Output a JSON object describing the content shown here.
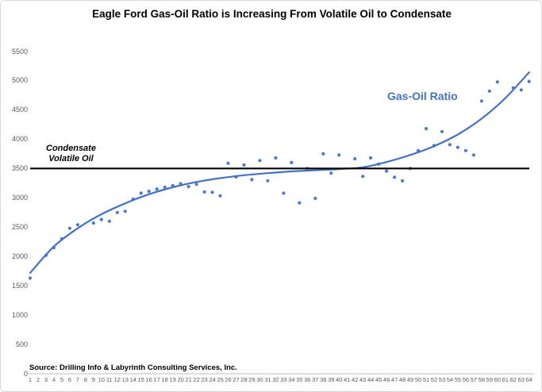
{
  "title": "Eagle Ford Gas-Oil Ratio is Increasing From Volatile Oil to Condensate",
  "source_note": "Source: Drilling Info & Labyrinth Consulting Services, Inc.",
  "annotations": {
    "condensate_label": "Condensate",
    "volatile_oil_label": "Volatile  Oil",
    "series_label": "Gas-Oil Ratio"
  },
  "colors": {
    "series_blue": "#4472c4",
    "boundary_line": "#000000",
    "axis_text": "#595959",
    "axis_line": "#bfbfbf",
    "frame_border": "#d9d9d9"
  },
  "chart_data": {
    "type": "scatter",
    "title": "Eagle Ford Gas-Oil Ratio is Increasing From Volatile Oil to Condensate",
    "xlabel": "",
    "ylabel": "",
    "ylim": [
      0,
      5500
    ],
    "yticks": [
      0,
      500,
      1000,
      1500,
      2000,
      2500,
      3000,
      3500,
      4000,
      4500,
      5000,
      5500
    ],
    "xticks": [
      1,
      2,
      3,
      4,
      5,
      6,
      7,
      8,
      9,
      10,
      11,
      12,
      13,
      14,
      15,
      16,
      17,
      18,
      19,
      20,
      21,
      22,
      23,
      24,
      25,
      26,
      27,
      28,
      29,
      30,
      31,
      32,
      33,
      34,
      35,
      36,
      37,
      38,
      39,
      40,
      41,
      42,
      43,
      44,
      45,
      46,
      47,
      48,
      49,
      50,
      51,
      52,
      53,
      54,
      55,
      56,
      57,
      58,
      59,
      60,
      61,
      62,
      63,
      64
    ],
    "grid": false,
    "legend_position": "none",
    "boundary_line_y": 3500,
    "points": [
      [
        1,
        1630
      ],
      [
        3,
        2020
      ],
      [
        4,
        2150
      ],
      [
        5,
        2300
      ],
      [
        6,
        2480
      ],
      [
        7,
        2540
      ],
      [
        9,
        2570
      ],
      [
        10,
        2630
      ],
      [
        11,
        2600
      ],
      [
        12,
        2750
      ],
      [
        13,
        2770
      ],
      [
        14,
        2980
      ],
      [
        15,
        3080
      ],
      [
        16,
        3110
      ],
      [
        17,
        3150
      ],
      [
        18,
        3180
      ],
      [
        19,
        3210
      ],
      [
        20,
        3240
      ],
      [
        21,
        3190
      ],
      [
        22,
        3230
      ],
      [
        23,
        3100
      ],
      [
        24,
        3095
      ],
      [
        25,
        3035
      ],
      [
        26,
        3590
      ],
      [
        27,
        3355
      ],
      [
        28,
        3560
      ],
      [
        29,
        3310
      ],
      [
        30,
        3635
      ],
      [
        31,
        3290
      ],
      [
        32,
        3680
      ],
      [
        33,
        3080
      ],
      [
        34,
        3600
      ],
      [
        35,
        2915
      ],
      [
        36,
        3500
      ],
      [
        37,
        2990
      ],
      [
        38,
        3750
      ],
      [
        39,
        3420
      ],
      [
        40,
        3730
      ],
      [
        42,
        3665
      ],
      [
        43,
        3365
      ],
      [
        44,
        3680
      ],
      [
        45,
        3575
      ],
      [
        46,
        3455
      ],
      [
        47,
        3350
      ],
      [
        48,
        3290
      ],
      [
        49,
        3500
      ],
      [
        50,
        3805
      ],
      [
        51,
        4180
      ],
      [
        52,
        3890
      ],
      [
        53,
        4130
      ],
      [
        54,
        3905
      ],
      [
        55,
        3860
      ],
      [
        56,
        3805
      ],
      [
        57,
        3730
      ],
      [
        58,
        4650
      ],
      [
        59,
        4820
      ],
      [
        60,
        4975
      ],
      [
        62,
        4875
      ],
      [
        63,
        4840
      ],
      [
        64,
        4985
      ]
    ],
    "trend_line": [
      [
        1,
        1720
      ],
      [
        4,
        2170
      ],
      [
        7,
        2480
      ],
      [
        10,
        2720
      ],
      [
        13,
        2905
      ],
      [
        16,
        3060
      ],
      [
        19,
        3180
      ],
      [
        22,
        3270
      ],
      [
        25,
        3335
      ],
      [
        28,
        3385
      ],
      [
        31,
        3420
      ],
      [
        34,
        3450
      ],
      [
        37,
        3470
      ],
      [
        40,
        3490
      ],
      [
        43,
        3520
      ],
      [
        46,
        3610
      ],
      [
        49,
        3730
      ],
      [
        52,
        3880
      ],
      [
        55,
        4080
      ],
      [
        58,
        4350
      ],
      [
        61,
        4700
      ],
      [
        64,
        5140
      ]
    ]
  }
}
